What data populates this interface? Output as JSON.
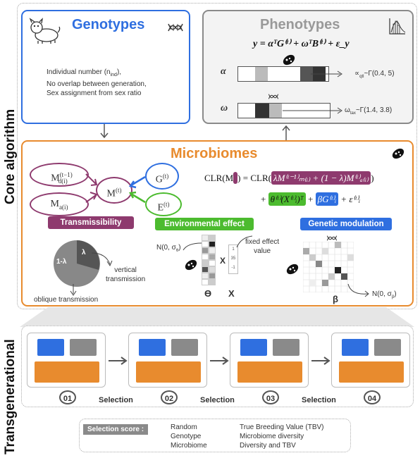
{
  "side_labels": {
    "core": "Core algorithm",
    "trans": "Transgenerational"
  },
  "genotypes": {
    "title": "Genotypes",
    "lines": [
      "Individual number (n",
      "No overlap between generation,",
      "Sex assignment from sex ratio"
    ],
    "sub_ind": "ind",
    "line1_tail": "),"
  },
  "phenotypes": {
    "title": "Phenotypes",
    "equation": "y = αᵀG⁽ᵗ⁾ + ωᵀB⁽ᵗ⁾ + ε_y",
    "alpha_symbol": "α",
    "omega_symbol": "ω",
    "alpha_dist": "∝",
    "alpha_sub": "qtl",
    "alpha_tail": "~Γ(0.4, 5)",
    "omega_prefix": "ω",
    "omega_sub": "tax",
    "omega_tail": "~Γ(1.4, 3.8)"
  },
  "microbiomes": {
    "title": "Microbiomes",
    "node_md": "M",
    "node_md_sup": "(t−1)",
    "node_md_sub": "d(i)",
    "node_ma": "M",
    "node_ma_sub": "a(i)",
    "node_mi": "M",
    "node_mi_sup": "(t)",
    "node_mi_sub": "i",
    "node_g": "G",
    "node_g_sup": "(t)",
    "node_g_sub": "i",
    "node_e": "E",
    "node_e_sup": "(t)",
    "clr_lhs": "CLR(M",
    "clr_eq": "= CLR(",
    "clr_term1": "λM⁽ᵗ⁻¹⁾ₘ₍ᵢ₎ + (1 − λ)M⁽ᵗ⁾ₐ₍ᵢ₎",
    "clr_close": ")",
    "clr_plus": "+",
    "clr_term2": "θ⁽ᵗ⁾(X⁽ᵗ⁾ᵢ)ᵀ",
    "clr_term3": "βG⁽ᵗ⁾ᵢ",
    "clr_eps": "+ ε⁽ᵗ⁾ᵢ",
    "tag_transmissibility": "Transmissibility",
    "tag_environment": "Environmental effect",
    "tag_genetic": "Genetic modulation",
    "pie_big": "1-λ",
    "pie_small": "λ",
    "vertical": "vertical\ntransmission",
    "oblique": "oblique transmission",
    "n_theta": "N(0, σ",
    "n_theta_sub": "θ",
    "n_beta": "N(0, σ",
    "n_beta_sub": "β",
    "fixed_effect": "fixed effect\nvalue",
    "x_values": [
      "1",
      "35",
      "-1"
    ],
    "x_mark": "X",
    "theta_label": "ϴ",
    "x_label": "X",
    "beta_label": "β"
  },
  "generations": [
    "01",
    "02",
    "03",
    "04"
  ],
  "selection_word": "Selection",
  "selection_score": {
    "label": "Selection score :",
    "col1": [
      "Random",
      "Genotype",
      "Microbiome"
    ],
    "col2": [
      "True Breeding Value (TBV)",
      "Microbiome diversity",
      "Diversity and TBV"
    ]
  },
  "colors": {
    "blue": "#2f6fe0",
    "grey": "#8a8a8a",
    "orange": "#e88b2e",
    "purple": "#8e3a6e",
    "green": "#4cbb2f",
    "bg_box": "#f3f3f3"
  }
}
